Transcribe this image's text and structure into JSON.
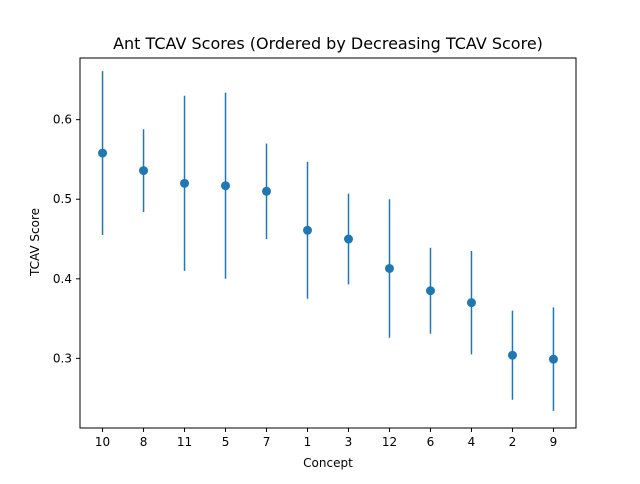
{
  "chart_data": {
    "type": "scatter",
    "title": "Ant TCAV Scores (Ordered by Decreasing TCAV Score)",
    "xlabel": "Concept",
    "ylabel": "TCAV Score",
    "categories": [
      "10",
      "8",
      "11",
      "5",
      "7",
      "1",
      "3",
      "12",
      "6",
      "4",
      "2",
      "9"
    ],
    "values": [
      0.558,
      0.536,
      0.52,
      0.517,
      0.51,
      0.461,
      0.45,
      0.413,
      0.385,
      0.37,
      0.304,
      0.299
    ],
    "error": [
      0.103,
      0.052,
      0.11,
      0.117,
      0.06,
      0.086,
      0.057,
      0.087,
      0.054,
      0.065,
      0.056,
      0.065
    ],
    "ylim": [
      0.2125,
      0.6775
    ],
    "yticks": [
      0.3,
      0.4,
      0.5,
      0.6
    ],
    "ytick_labels": [
      "0.3",
      "0.4",
      "0.5",
      "0.6"
    ],
    "grid": false,
    "color": "#1f77b4"
  }
}
